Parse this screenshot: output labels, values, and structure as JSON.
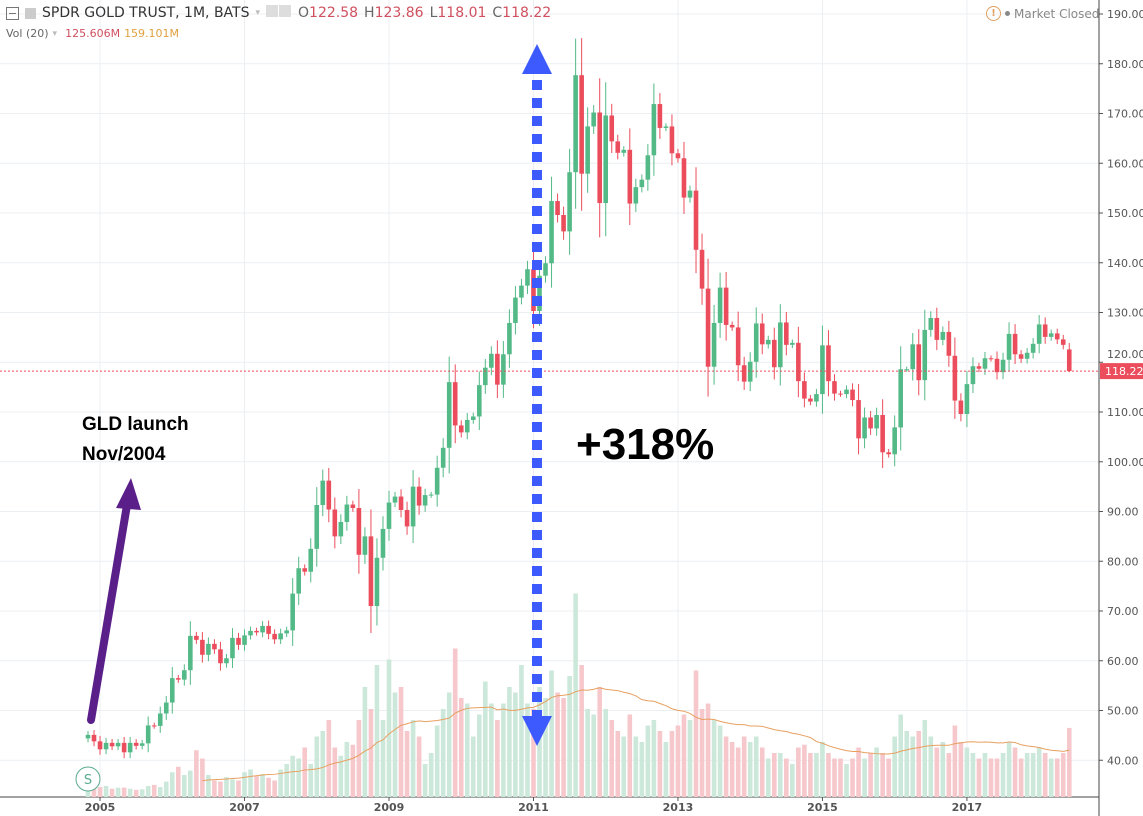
{
  "header": {
    "symbol": "SPDR GOLD TRUST, 1M, BATS",
    "open_label": "O",
    "open": "122.58",
    "high_label": "H",
    "high": "123.86",
    "low_label": "L",
    "low": "118.01",
    "close_label": "C",
    "close": "118.22"
  },
  "volume_indicator": {
    "label": "Vol (20)",
    "volume": "125.606M",
    "ma": "159.101M"
  },
  "market_status": "Market Closed",
  "last_price_label": "118.22",
  "symbol_badge": "S",
  "annotations": {
    "launch_line1": "GLD launch",
    "launch_line2": "Nov/2004",
    "gain": "+318%"
  },
  "colors": {
    "up": "#53b987",
    "down": "#eb4d5c",
    "vol_up": "#cce8da",
    "vol_down": "#f6c8cc",
    "ma": "#e8a060",
    "arrow_purple": "#5b1f8a",
    "arrow_blue": "#3d5afe"
  },
  "chart_data": {
    "type": "candlestick",
    "interval": "1M",
    "start": "2004-11",
    "end": "2018-06",
    "ylim": [
      32,
      192
    ],
    "y_ticks": [
      "190.00",
      "180.00",
      "170.00",
      "160.00",
      "150.00",
      "140.00",
      "130.00",
      "120.00",
      "110.00",
      "100.00",
      "90.00",
      "80.00",
      "70.00",
      "60.00",
      "50.00",
      "40.00"
    ],
    "x_ticks": [
      "2005",
      "2007",
      "2009",
      "2011",
      "2013",
      "2015",
      "2017"
    ],
    "grid": true,
    "last": {
      "open": 122.58,
      "high": 123.86,
      "low": 118.01,
      "close": 118.22
    },
    "closes": [
      45.1,
      43.8,
      42.2,
      43.5,
      42.8,
      43.5,
      41.6,
      43.5,
      42.9,
      43.4,
      47.0,
      46.9,
      49.4,
      51.6,
      56.5,
      56.2,
      58.1,
      65.0,
      64.2,
      61.2,
      63.4,
      62.3,
      59.5,
      60.5,
      64.6,
      63.2,
      65.1,
      66.0,
      65.7,
      67.0,
      65.4,
      64.3,
      65.5,
      66.1,
      73.5,
      78.6,
      77.9,
      82.5,
      91.3,
      96.2,
      90.4,
      85.0,
      87.9,
      91.4,
      90.7,
      81.3,
      85.0,
      71.0,
      80.7,
      86.5,
      91.8,
      93.0,
      90.3,
      87.0,
      95.0,
      91.2,
      93.3,
      93.4,
      98.8,
      102.8,
      116.0,
      107.3,
      105.9,
      108.4,
      109.1,
      115.4,
      118.9,
      121.7,
      115.5,
      121.6,
      127.9,
      133.0,
      135.4,
      138.7,
      130.3,
      137.4,
      139.9,
      152.4,
      149.6,
      146.3,
      158.2,
      177.7,
      157.9,
      167.4,
      170.2,
      152.0,
      169.6,
      164.4,
      162.1,
      162.7,
      151.9,
      155.2,
      156.7,
      161.6,
      171.9,
      167.1,
      167.4,
      162.0,
      161.0,
      153.1,
      154.5,
      142.6,
      134.8,
      119.1,
      127.9,
      135.0,
      127.5,
      127.0,
      119.4,
      116.1,
      120.1,
      127.8,
      123.6,
      124.5,
      119.0,
      128.0,
      123.5,
      123.9,
      116.2,
      112.7,
      112.1,
      113.6,
      123.4,
      116.2,
      113.7,
      113.6,
      114.5,
      112.4,
      104.7,
      108.9,
      106.7,
      109.4,
      101.9,
      101.5,
      106.9,
      118.6,
      118.6,
      123.6,
      116.4,
      126.5,
      128.9,
      124.5,
      126.1,
      121.3,
      112.3,
      109.6,
      115.6,
      119.2,
      118.7,
      120.8,
      120.7,
      118.0,
      120.5,
      125.7,
      121.6,
      120.7,
      121.9,
      123.7,
      127.6,
      125.1,
      125.8,
      124.6,
      123.5,
      118.22
    ],
    "volumes_M": [
      15,
      20,
      18,
      20,
      15,
      17,
      17,
      15,
      13,
      14,
      20,
      22,
      18,
      28,
      45,
      55,
      40,
      48,
      85,
      70,
      40,
      30,
      28,
      36,
      32,
      30,
      45,
      50,
      38,
      42,
      35,
      30,
      50,
      60,
      75,
      70,
      90,
      60,
      110,
      120,
      140,
      90,
      75,
      100,
      95,
      140,
      200,
      160,
      240,
      140,
      250,
      190,
      200,
      120,
      140,
      110,
      60,
      80,
      130,
      160,
      190,
      270,
      180,
      170,
      110,
      150,
      210,
      170,
      140,
      170,
      200,
      190,
      240,
      170,
      160,
      200,
      180,
      230,
      190,
      180,
      220,
      370,
      240,
      160,
      150,
      200,
      160,
      140,
      120,
      110,
      150,
      110,
      100,
      130,
      140,
      120,
      100,
      120,
      130,
      150,
      140,
      230,
      160,
      170,
      140,
      130,
      110,
      100,
      90,
      110,
      100,
      110,
      90,
      70,
      80,
      80,
      70,
      60,
      90,
      95,
      80,
      80,
      100,
      80,
      70,
      70,
      60,
      70,
      90,
      70,
      80,
      90,
      80,
      70,
      110,
      150,
      120,
      110,
      120,
      140,
      110,
      90,
      100,
      80,
      130,
      100,
      90,
      80,
      70,
      80,
      70,
      70,
      80,
      100,
      90,
      70,
      80,
      80,
      90,
      80,
      70,
      70,
      80,
      125.606
    ],
    "volume_ma_period": 20
  }
}
